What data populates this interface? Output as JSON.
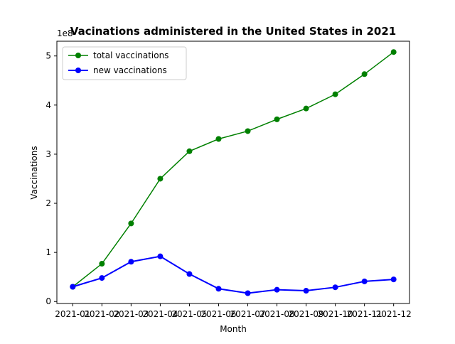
{
  "chart_data": {
    "type": "line",
    "title": "Vacinations administered in the United States in 2021",
    "xlabel": "Month",
    "ylabel": "Vaccinations",
    "y_offset_label": "1e8",
    "categories": [
      "2021-01",
      "2021-02",
      "2021-03",
      "2021-04",
      "2021-05",
      "2021-06",
      "2021-07",
      "2021-08",
      "2021-09",
      "2021-10",
      "2021-11",
      "2021-12"
    ],
    "y_ticks": [
      0,
      1,
      2,
      3,
      4,
      5
    ],
    "ylim": [
      -0.04,
      5.3
    ],
    "grid": false,
    "legend_position": "top-left",
    "series": [
      {
        "name": "total vaccinations",
        "color": "#008000",
        "values": [
          0.3,
          0.77,
          1.59,
          2.5,
          3.06,
          3.31,
          3.47,
          3.71,
          3.93,
          4.22,
          4.63,
          5.08
        ]
      },
      {
        "name": "new vaccinations",
        "color": "#0000ff",
        "values": [
          0.3,
          0.48,
          0.81,
          0.92,
          0.56,
          0.26,
          0.17,
          0.24,
          0.22,
          0.29,
          0.41,
          0.45
        ]
      }
    ]
  }
}
